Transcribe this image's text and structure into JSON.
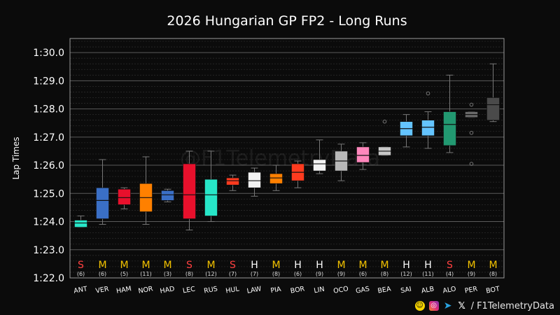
{
  "chart_data": {
    "type": "box",
    "title": "2026 Hungarian GP FP2 - Long Runs",
    "ylabel": "Lap Times",
    "xlabel": "",
    "ylim": [
      82.0,
      90.5
    ],
    "yticks": [
      "1:22.0",
      "1:23.0",
      "1:24.0",
      "1:25.0",
      "1:26.0",
      "1:27.0",
      "1:28.0",
      "1:29.0",
      "1:30.0"
    ],
    "ytick_values": [
      82,
      83,
      84,
      85,
      86,
      87,
      88,
      89,
      90
    ],
    "grid": true,
    "watermark": "@F1TelemetryData",
    "tyre_colors": {
      "S": "#ff4040",
      "M": "#f5c400",
      "H": "#ffffff"
    },
    "drivers": [
      {
        "name": "ANT",
        "color": "#27e6c8",
        "tyre": "S",
        "laps": "(6)",
        "whislo": 83.8,
        "q1": 83.8,
        "med": 83.95,
        "q3": 84.05,
        "whishi": 84.2,
        "fliers": []
      },
      {
        "name": "VER",
        "color": "#3a6fc6",
        "tyre": "M",
        "laps": "(6)",
        "whislo": 83.9,
        "q1": 84.1,
        "med": 84.75,
        "q3": 85.2,
        "whishi": 86.2,
        "fliers": []
      },
      {
        "name": "HAM",
        "color": "#e8102c",
        "tyre": "M",
        "laps": "(5)",
        "whislo": 84.45,
        "q1": 84.6,
        "med": 84.85,
        "q3": 85.15,
        "whishi": 85.2,
        "fliers": []
      },
      {
        "name": "NOR",
        "color": "#ff8000",
        "tyre": "M",
        "laps": "(11)",
        "whislo": 83.9,
        "q1": 84.35,
        "med": 84.85,
        "q3": 85.35,
        "whishi": 86.3,
        "fliers": []
      },
      {
        "name": "HAD",
        "color": "#3a6fc6",
        "tyre": "M",
        "laps": "(3)",
        "whislo": 84.7,
        "q1": 84.75,
        "med": 84.95,
        "q3": 85.1,
        "whishi": 85.15,
        "fliers": []
      },
      {
        "name": "LEC",
        "color": "#e8102c",
        "tyre": "S",
        "laps": "(8)",
        "whislo": 83.7,
        "q1": 84.1,
        "med": 84.95,
        "q3": 86.05,
        "whishi": 86.5,
        "fliers": []
      },
      {
        "name": "RUS",
        "color": "#27e6c8",
        "tyre": "M",
        "laps": "(12)",
        "whislo": 84.0,
        "q1": 84.2,
        "med": 84.95,
        "q3": 85.5,
        "whishi": 86.5,
        "fliers": []
      },
      {
        "name": "HUL",
        "color": "#ff3b1f",
        "tyre": "S",
        "laps": "(7)",
        "whislo": 85.1,
        "q1": 85.3,
        "med": 85.45,
        "q3": 85.55,
        "whishi": 85.65,
        "fliers": []
      },
      {
        "name": "LAW",
        "color": "#f2f2f2",
        "tyre": "H",
        "laps": "(7)",
        "whislo": 84.9,
        "q1": 85.2,
        "med": 85.45,
        "q3": 85.75,
        "whishi": 85.9,
        "fliers": []
      },
      {
        "name": "PIA",
        "color": "#ff8000",
        "tyre": "M",
        "laps": "(8)",
        "whislo": 85.1,
        "q1": 85.35,
        "med": 85.55,
        "q3": 85.7,
        "whishi": 86.0,
        "fliers": []
      },
      {
        "name": "BOR",
        "color": "#ff3b1f",
        "tyre": "H",
        "laps": "(6)",
        "whislo": 85.2,
        "q1": 85.45,
        "med": 85.75,
        "q3": 86.05,
        "whishi": 86.15,
        "fliers": []
      },
      {
        "name": "LIN",
        "color": "#f2f2f2",
        "tyre": "H",
        "laps": "(9)",
        "whislo": 85.7,
        "q1": 85.8,
        "med": 86.05,
        "q3": 86.2,
        "whishi": 86.9,
        "fliers": []
      },
      {
        "name": "OCO",
        "color": "#b8b8b8",
        "tyre": "M",
        "laps": "(9)",
        "whislo": 85.45,
        "q1": 85.8,
        "med": 86.15,
        "q3": 86.5,
        "whishi": 86.75,
        "fliers": []
      },
      {
        "name": "GAS",
        "color": "#ff87bc",
        "tyre": "M",
        "laps": "(6)",
        "whislo": 85.85,
        "q1": 86.1,
        "med": 86.35,
        "q3": 86.65,
        "whishi": 86.8,
        "fliers": []
      },
      {
        "name": "BEA",
        "color": "#c8c8c8",
        "tyre": "M",
        "laps": "(8)",
        "whislo": 86.35,
        "q1": 86.35,
        "med": 86.5,
        "q3": 86.65,
        "whishi": 86.65,
        "fliers": [
          87.55
        ]
      },
      {
        "name": "SAI",
        "color": "#64c4ff",
        "tyre": "H",
        "laps": "(12)",
        "whislo": 86.65,
        "q1": 87.05,
        "med": 87.3,
        "q3": 87.55,
        "whishi": 87.8,
        "fliers": []
      },
      {
        "name": "ALB",
        "color": "#64c4ff",
        "tyre": "H",
        "laps": "(11)",
        "whislo": 86.6,
        "q1": 87.05,
        "med": 87.35,
        "q3": 87.6,
        "whishi": 87.9,
        "fliers": [
          88.55
        ]
      },
      {
        "name": "ALO",
        "color": "#229971",
        "tyre": "S",
        "laps": "(4)",
        "whislo": 86.45,
        "q1": 86.7,
        "med": 87.45,
        "q3": 87.9,
        "whishi": 89.2,
        "fliers": []
      },
      {
        "name": "PER",
        "color": "#6a6a6a",
        "tyre": "M",
        "laps": "(9)",
        "whislo": 87.7,
        "q1": 87.7,
        "med": 87.8,
        "q3": 87.9,
        "whishi": 87.9,
        "fliers": [
          86.05,
          87.15,
          88.15
        ]
      },
      {
        "name": "BOT",
        "color": "#4a4a4a",
        "tyre": "M",
        "laps": "(8)",
        "whislo": 87.55,
        "q1": 87.6,
        "med": 88.15,
        "q3": 88.4,
        "whishi": 89.6,
        "fliers": []
      }
    ]
  },
  "footer": {
    "handle": "/ F1TelemetryData",
    "icons": [
      "snapchat-icon",
      "instagram-icon",
      "telegram-icon",
      "x-icon"
    ]
  }
}
